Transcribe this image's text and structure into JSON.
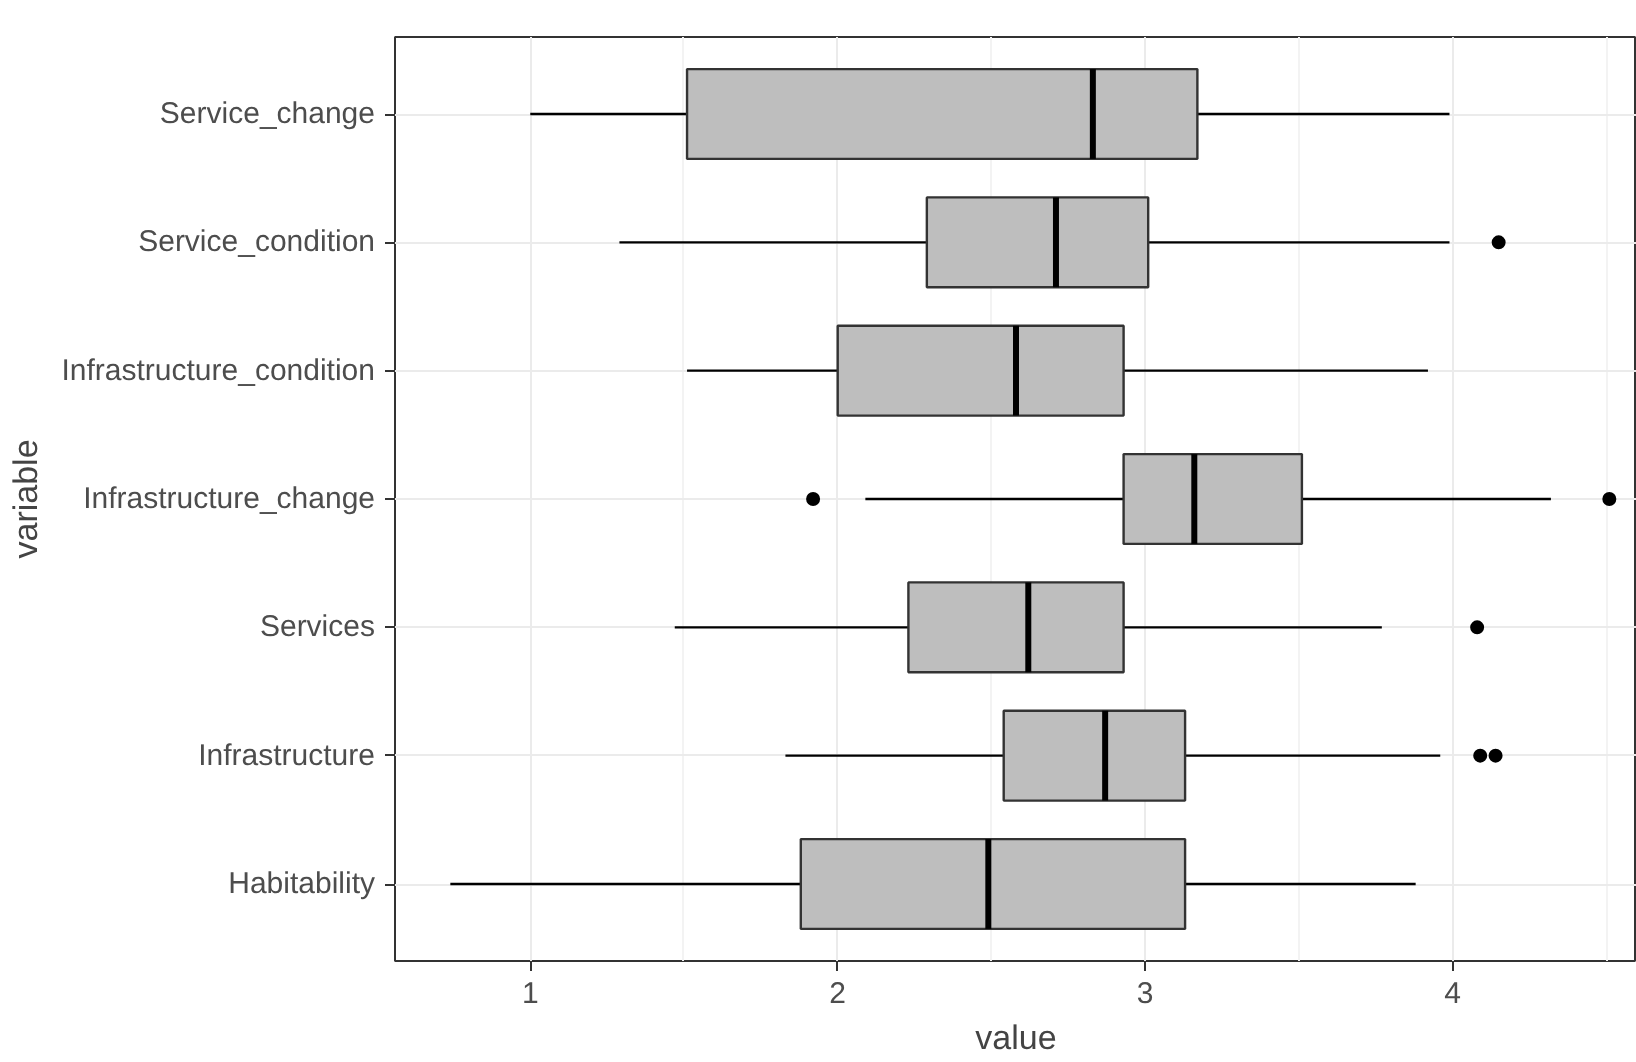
{
  "chart_data": {
    "type": "box",
    "orientation": "horizontal",
    "xlabel": "value",
    "ylabel": "variable",
    "categories": [
      "Service_change",
      "Service_condition",
      "Infrastructure_condition",
      "Infrastructure_change",
      "Services",
      "Infrastructure",
      "Habitability"
    ],
    "color": "#bebebe",
    "boxes": [
      {
        "low": 1.0,
        "q1": 1.51,
        "median": 2.83,
        "q3": 3.17,
        "high": 3.99
      },
      {
        "low": 1.29,
        "q1": 2.29,
        "median": 2.71,
        "q3": 3.01,
        "high": 3.99,
        "outliers": [
          4.15
        ]
      },
      {
        "low": 1.51,
        "q1": 2.0,
        "median": 2.58,
        "q3": 2.93,
        "high": 3.92
      },
      {
        "low": 2.09,
        "q1": 2.93,
        "median": 3.16,
        "q3": 3.51,
        "high": 4.32,
        "outliers": [
          1.92,
          4.51
        ]
      },
      {
        "low": 1.47,
        "q1": 2.23,
        "median": 2.62,
        "q3": 2.93,
        "high": 3.77,
        "outliers": [
          4.08
        ]
      },
      {
        "low": 1.83,
        "q1": 2.54,
        "median": 2.87,
        "q3": 3.13,
        "high": 3.96,
        "outliers": [
          4.09,
          4.14
        ]
      },
      {
        "low": 0.74,
        "q1": 1.88,
        "median": 2.49,
        "q3": 3.13,
        "high": 3.88
      }
    ],
    "xlim": [
      0.56,
      4.6
    ],
    "xticks": [
      1,
      2,
      3,
      4
    ],
    "grid": true
  }
}
